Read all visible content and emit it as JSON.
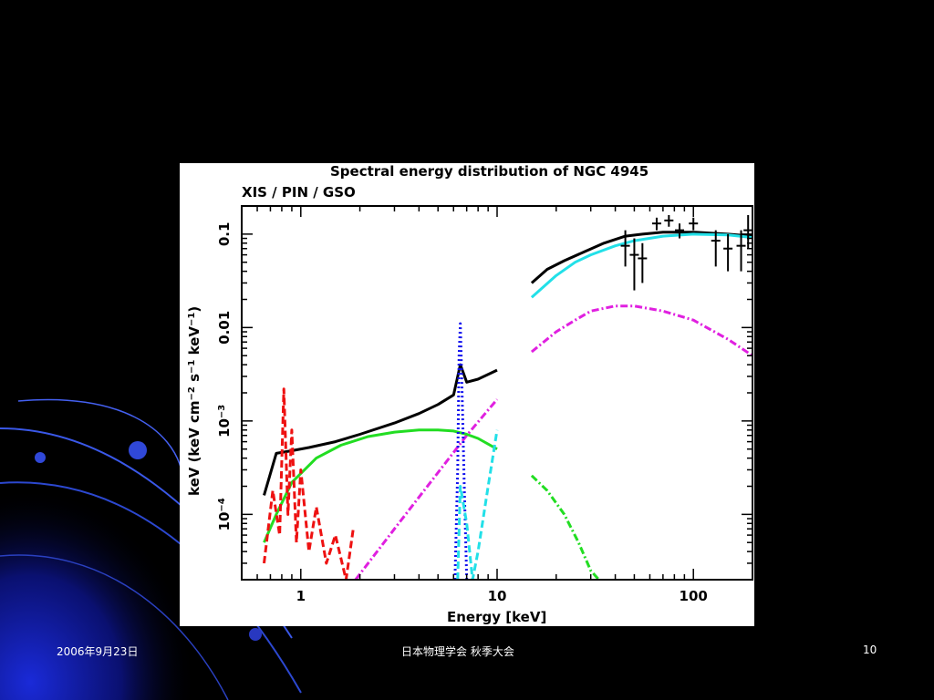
{
  "footer": {
    "date": "2006年9月23日",
    "center": "日本物理学会 秋季大会",
    "page": "10"
  },
  "colors": {
    "background": "#000000",
    "total_model": "#000000",
    "cyan_component": "#22e0e8",
    "magenta_component": "#e020e0",
    "green_component": "#22dd22",
    "red_component": "#ee1111",
    "blue_component": "#1111ee"
  },
  "chart_data": {
    "type": "line",
    "title": "Spectral energy distribution of NGC 4945",
    "subtitle": "XIS / PIN / GSO",
    "xlabel": "Energy [keV]",
    "ylabel_main": "keV (keV cm",
    "ylabel_sup1": "−2",
    "ylabel_mid": " s",
    "ylabel_sup2": "−1",
    "ylabel_mid2": " keV",
    "ylabel_sup3": "−1",
    "ylabel_end": ")",
    "x_scale": "log",
    "y_scale": "log",
    "xlim": [
      0.5,
      200
    ],
    "ylim": [
      2e-05,
      0.2
    ],
    "x_ticks": [
      {
        "value": 1,
        "label": "1"
      },
      {
        "value": 10,
        "label": "10"
      },
      {
        "value": 100,
        "label": "100"
      }
    ],
    "y_ticks": [
      {
        "value": 0.1,
        "label": "0.1",
        "sup": ""
      },
      {
        "value": 0.01,
        "label": "0.01",
        "sup": ""
      },
      {
        "value": 0.001,
        "label": "10",
        "sup": "−3"
      },
      {
        "value": 0.0001,
        "label": "10",
        "sup": "−4"
      }
    ],
    "series": [
      {
        "color": "#000000",
        "style": "solid",
        "x": [
          0.65,
          0.75,
          0.9,
          1.1,
          1.5,
          2,
          3,
          4,
          5,
          6,
          6.5,
          7,
          8,
          10
        ],
        "y": [
          0.00016,
          0.00045,
          0.00048,
          0.00052,
          0.0006,
          0.00072,
          0.00095,
          0.0012,
          0.0015,
          0.0019,
          0.004,
          0.0026,
          0.0028,
          0.0035
        ]
      },
      {
        "color": "#000000",
        "style": "solid",
        "x": [
          15,
          18,
          22,
          28,
          35,
          45,
          55,
          70,
          100,
          150,
          200
        ],
        "y": [
          0.03,
          0.042,
          0.052,
          0.065,
          0.08,
          0.095,
          0.1,
          0.105,
          0.105,
          0.1,
          0.095
        ]
      },
      {
        "color": "#22e0e8",
        "style": "solid",
        "x": [
          15,
          20,
          25,
          30,
          40,
          50,
          70,
          100,
          150,
          200
        ],
        "y": [
          0.021,
          0.036,
          0.05,
          0.06,
          0.075,
          0.085,
          0.095,
          0.1,
          0.098,
          0.092
        ]
      },
      {
        "color": "#e020e0",
        "style": "dashdot",
        "x": [
          15,
          20,
          25,
          30,
          40,
          50,
          70,
          100,
          150,
          200
        ],
        "y": [
          0.0055,
          0.009,
          0.012,
          0.015,
          0.017,
          0.017,
          0.015,
          0.012,
          0.0075,
          0.005
        ]
      },
      {
        "color": "#e020e0",
        "style": "dashdot",
        "x": [
          1.9,
          3,
          5,
          7,
          10
        ],
        "y": [
          2e-05,
          7e-05,
          0.00028,
          0.0007,
          0.0017
        ]
      },
      {
        "color": "#22dd22",
        "style": "solid",
        "x": [
          0.65,
          0.75,
          0.9,
          1.2,
          1.6,
          2.2,
          3,
          4,
          5,
          6,
          7,
          8,
          10
        ],
        "y": [
          5e-05,
          0.0001,
          0.00022,
          0.0004,
          0.00055,
          0.00068,
          0.00076,
          0.0008,
          0.0008,
          0.00078,
          0.00072,
          0.00065,
          0.0005
        ]
      },
      {
        "color": "#22dd22",
        "style": "dashdot",
        "x": [
          15,
          18,
          22,
          26,
          30,
          33
        ],
        "y": [
          0.00026,
          0.00018,
          0.0001,
          5e-05,
          2.5e-05,
          2e-05
        ]
      },
      {
        "color": "#ee1111",
        "style": "dashed",
        "x": [
          0.65,
          0.72,
          0.78,
          0.82,
          0.86,
          0.9,
          0.95,
          1.0,
          1.1,
          1.2,
          1.35,
          1.5,
          1.7,
          1.85
        ],
        "y": [
          3e-05,
          0.00018,
          6e-05,
          0.0022,
          0.0001,
          0.0008,
          5e-05,
          0.0003,
          4e-05,
          0.00012,
          3e-05,
          6e-05,
          2e-05,
          7e-05
        ]
      },
      {
        "color": "#1111ee",
        "style": "dotted",
        "x": [
          6.1,
          6.3,
          6.4,
          6.5,
          6.6,
          6.8,
          7.0
        ],
        "y": [
          2e-05,
          0.0003,
          0.005,
          0.011,
          0.003,
          0.0002,
          2e-05
        ]
      },
      {
        "color": "#22e0e8",
        "style": "dashed",
        "x": [
          6.3,
          6.5,
          7.0,
          7.5,
          8.0,
          9.0,
          10
        ],
        "y": [
          2e-05,
          0.0002,
          8e-05,
          2e-05,
          4e-05,
          0.0002,
          0.0008
        ]
      }
    ],
    "error_points": {
      "color": "#000000",
      "points": [
        {
          "x": 45,
          "y": 0.075,
          "lo": 0.045,
          "hi": 0.11
        },
        {
          "x": 50,
          "y": 0.06,
          "lo": 0.025,
          "hi": 0.09
        },
        {
          "x": 55,
          "y": 0.055,
          "lo": 0.03,
          "hi": 0.08
        },
        {
          "x": 65,
          "y": 0.13,
          "lo": 0.11,
          "hi": 0.15
        },
        {
          "x": 75,
          "y": 0.14,
          "lo": 0.12,
          "hi": 0.16
        },
        {
          "x": 85,
          "y": 0.11,
          "lo": 0.09,
          "hi": 0.13
        },
        {
          "x": 100,
          "y": 0.13,
          "lo": 0.11,
          "hi": 0.15
        },
        {
          "x": 130,
          "y": 0.085,
          "lo": 0.045,
          "hi": 0.11
        },
        {
          "x": 150,
          "y": 0.07,
          "lo": 0.04,
          "hi": 0.1
        },
        {
          "x": 175,
          "y": 0.075,
          "lo": 0.04,
          "hi": 0.11
        },
        {
          "x": 190,
          "y": 0.11,
          "lo": 0.07,
          "hi": 0.16
        }
      ]
    }
  }
}
